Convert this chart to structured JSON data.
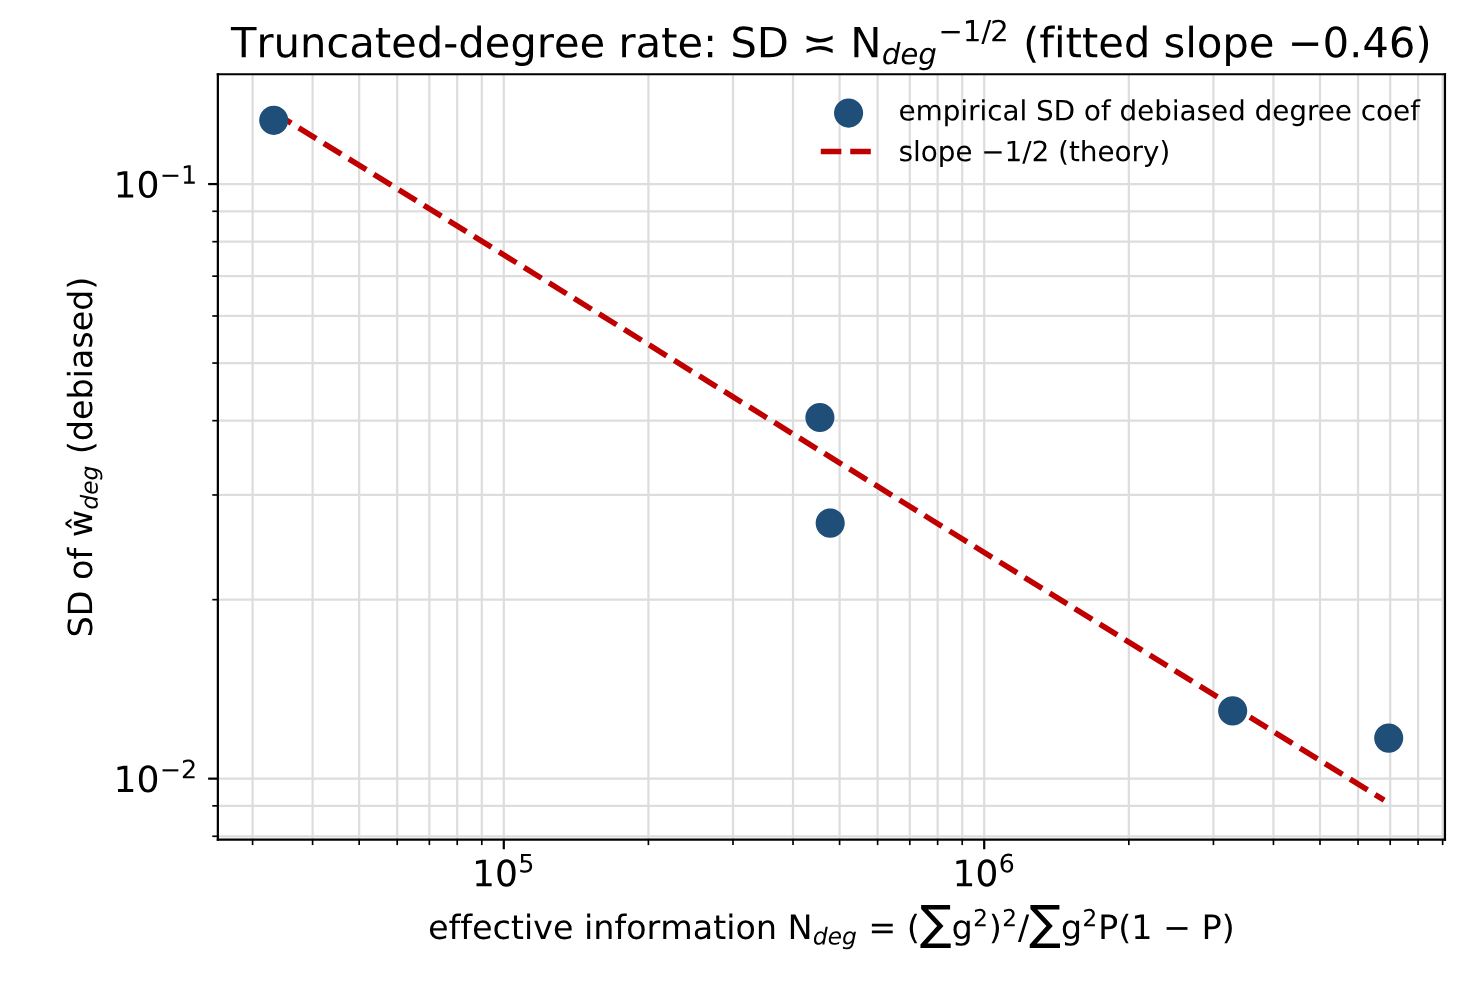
{
  "chart_data": {
    "type": "scatter",
    "title": "Truncated-degree rate: SD ≍ N$_{deg}$$^{−1/2}$ (fitted slope −0.46)",
    "xlabel": "effective information N$_{deg}$ = (∑g$^{2}$)$^{2}$/∑g$^{2}$P(1 − P)",
    "ylabel": "SD of ŵ$_{deg}$ (debiased)",
    "log": "xy",
    "grid": true,
    "legend": "top right",
    "xlim": [
      25400,
      9100000
    ],
    "ylim": [
      0.0079,
      0.153
    ],
    "xticks": [
      {
        "value": 100000,
        "label": "10$^{5}$"
      },
      {
        "value": 1000000,
        "label": "10$^{6}$"
      }
    ],
    "yticks": [
      {
        "value": 0.01,
        "label": "10$^{−2}$"
      },
      {
        "value": 0.1,
        "label": "10$^{−1}$"
      }
    ],
    "x": [
      33200,
      455000,
      478000,
      3290000,
      6950000
    ],
    "series": [
      {
        "name": "empirical SD of debiased degree coef",
        "color": "#1f4e79",
        "marker": "circle",
        "values": [
          0.128,
          0.0405,
          0.0269,
          0.013,
          0.0117
        ]
      },
      {
        "name": "slope −1/2 (theory)",
        "type": "line",
        "color": "#c00000",
        "line_style": "dashed",
        "marker": "none",
        "x": [
          33200,
          6800000
        ],
        "values": [
          0.132,
          0.0092
        ]
      }
    ]
  }
}
